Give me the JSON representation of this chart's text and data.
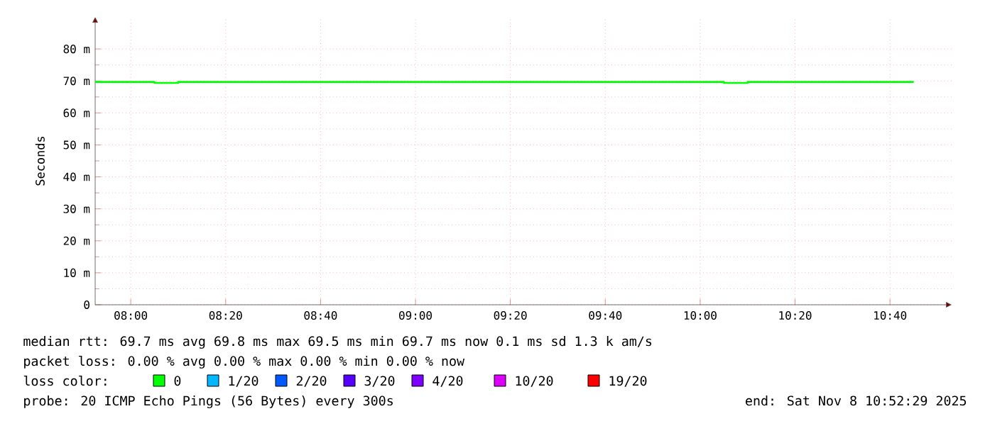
{
  "chart_data": {
    "type": "step",
    "ylabel": "Seconds",
    "x": [
      7.875,
      8.0833,
      8.1667,
      10.0833,
      10.1667,
      10.75
    ],
    "series": [
      {
        "name": "0",
        "color": "#00ff00",
        "values": [
          69.7,
          69.4,
          69.7,
          69.4,
          69.7,
          69.7
        ]
      }
    ],
    "xlim": [
      7.875,
      10.8833
    ],
    "xticks": [
      {
        "value": 8,
        "label": "08:00"
      },
      {
        "value": 8.3333,
        "label": "08:20"
      },
      {
        "value": 8.6667,
        "label": "08:40"
      },
      {
        "value": 9,
        "label": "09:00"
      },
      {
        "value": 9.3333,
        "label": "09:20"
      },
      {
        "value": 9.6667,
        "label": "09:40"
      },
      {
        "value": 10,
        "label": "10:00"
      },
      {
        "value": 10.3333,
        "label": "10:20"
      },
      {
        "value": 10.6667,
        "label": "10:40"
      }
    ],
    "ylim": [
      0,
      90
    ],
    "yticks": [
      0,
      {
        "value": 10,
        "label": "10 m"
      },
      {
        "value": 20,
        "label": "20 m"
      },
      {
        "value": 30,
        "label": "30 m"
      },
      {
        "value": 40,
        "label": "40 m"
      },
      {
        "value": 50,
        "label": "50 m"
      },
      {
        "value": 60,
        "label": "60 m"
      },
      {
        "value": 70,
        "label": "70 m"
      },
      {
        "value": 80,
        "label": "80 m"
      }
    ],
    "grid": true,
    "legend_title": "loss color:",
    "annotations": [
      "median rtt:  69.7 ms avg  69.8 ms max  69.5 ms min  69.7 ms now  0.1 ms sd  1.3 k am/s",
      "packet loss: 0.00 % avg  0.00 % max  0.00 % min  0.00 % now",
      "1/20",
      "2/20",
      "3/20",
      "4/20",
      "10/20",
      "19/20",
      "probe:       20 ICMP Echo Pings (56 Bytes) every 300s",
      "end: Sat Nov  8 10:52:29 2025"
    ]
  }
}
